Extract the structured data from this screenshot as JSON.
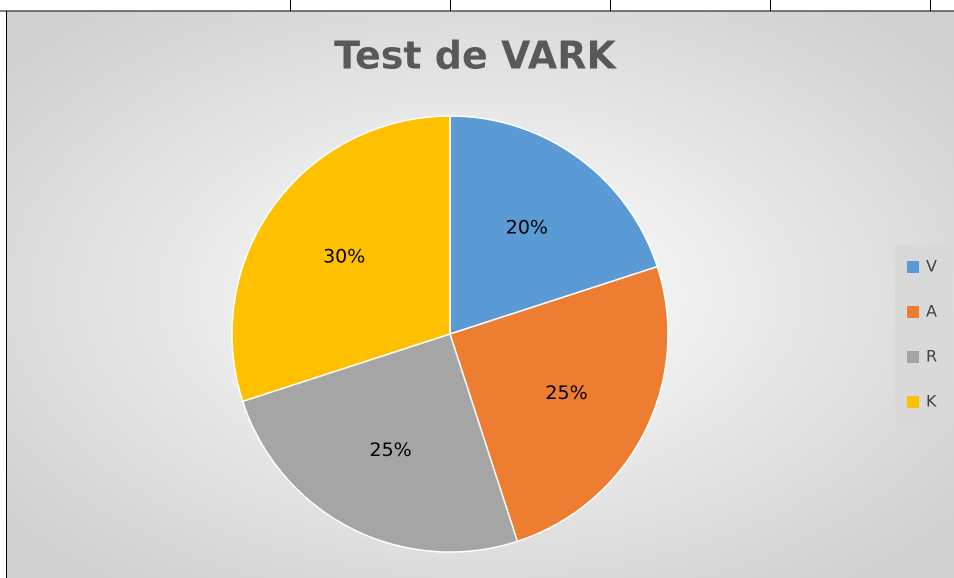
{
  "chart_data": {
    "type": "pie",
    "title": "Test de VARK",
    "categories": [
      "V",
      "A",
      "R",
      "K"
    ],
    "values": [
      20,
      25,
      25,
      30
    ],
    "value_labels": [
      "20%",
      "25%",
      "25%",
      "30%"
    ],
    "colors": [
      "#5b9bd5",
      "#ed7d31",
      "#a5a5a5",
      "#ffc000"
    ],
    "legend": "right"
  }
}
